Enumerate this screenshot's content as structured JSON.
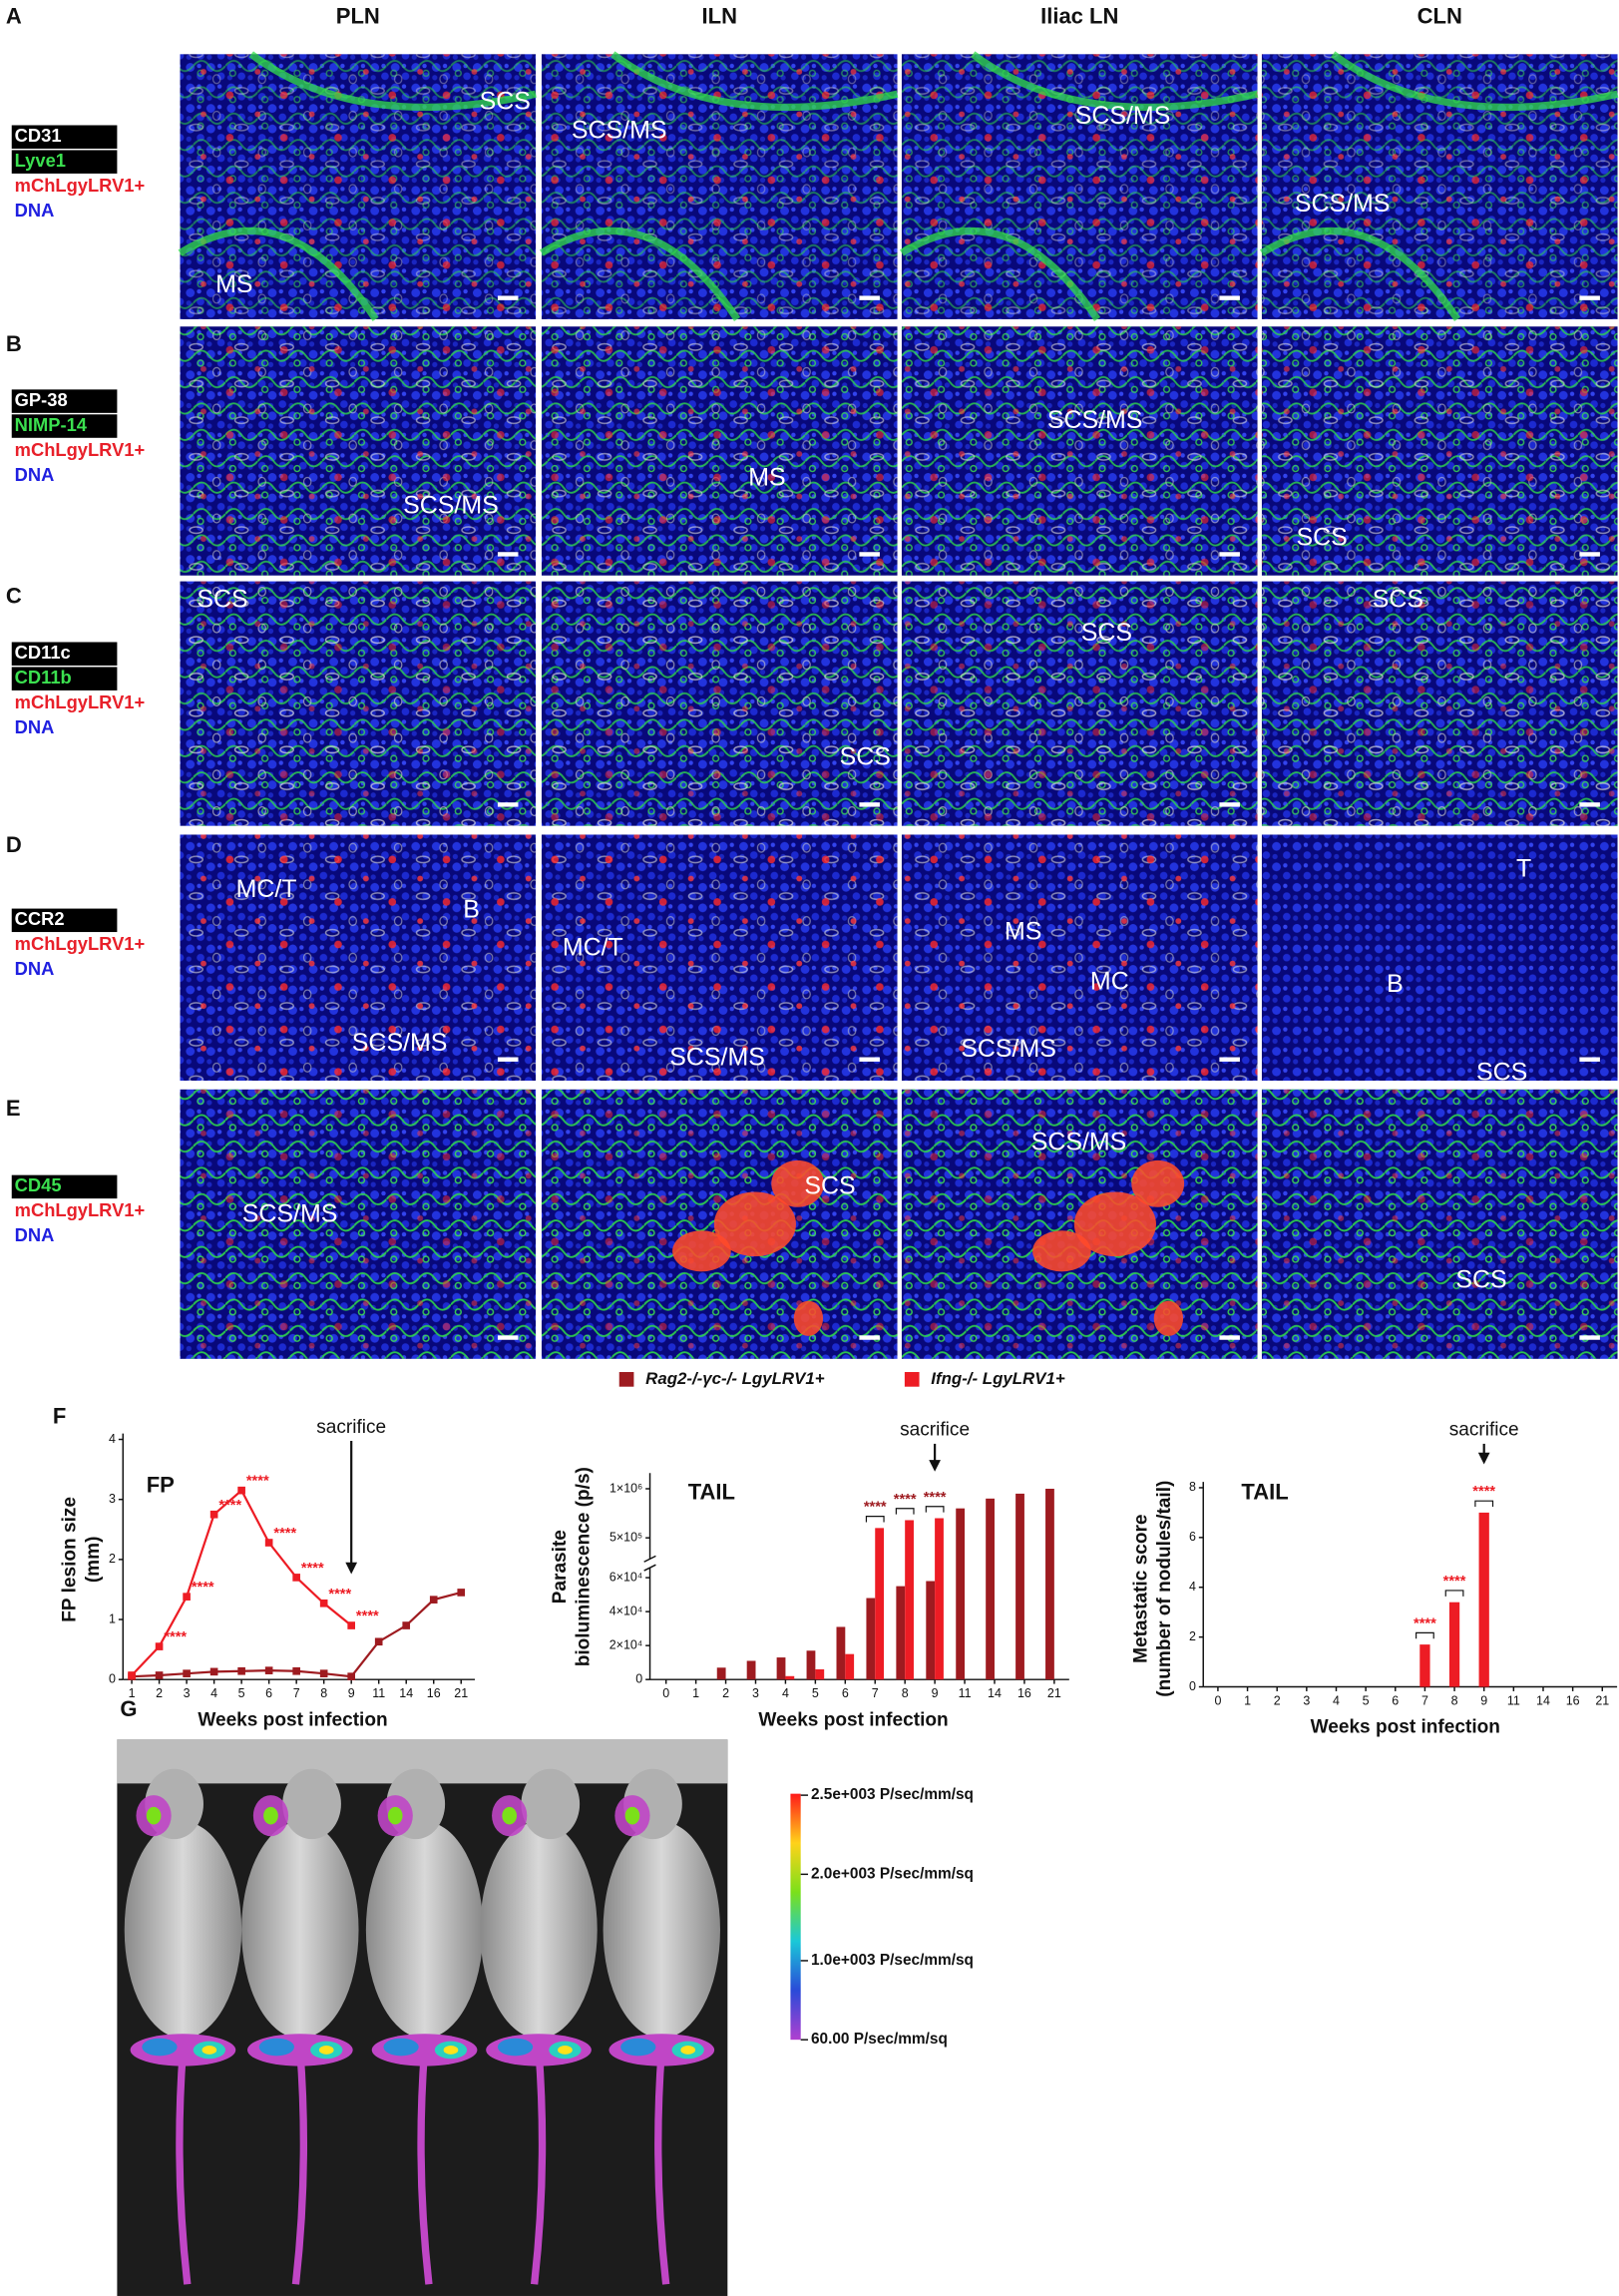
{
  "figure": {
    "column_headers": [
      "PLN",
      "ILN",
      "Iliac LN",
      "CLN"
    ],
    "rows": [
      {
        "letter": "A",
        "markers": [
          {
            "text": "CD31",
            "color": "#ffffff",
            "boxed": true
          },
          {
            "text": "Lyve1",
            "color": "#3be04f",
            "boxed": true
          },
          {
            "text": "mChLgyLRV1+",
            "color": "#e8202a"
          },
          {
            "text": "DNA",
            "color": "#1f1fe0"
          }
        ],
        "labels": [
          [
            "SCS",
            "MS"
          ],
          [
            "SCS/MS"
          ],
          [
            "SCS/MS"
          ],
          [
            "SCS/MS"
          ]
        ]
      },
      {
        "letter": "B",
        "markers": [
          {
            "text": "GP-38",
            "color": "#ffffff",
            "boxed": true
          },
          {
            "text": "NIMP-14",
            "color": "#3be04f",
            "boxed": true
          },
          {
            "text": "mChLgyLRV1+",
            "color": "#e8202a"
          },
          {
            "text": "DNA",
            "color": "#1f1fe0"
          }
        ],
        "labels": [
          [
            "SCS/MS"
          ],
          [
            "MS"
          ],
          [
            "SCS/MS"
          ],
          [
            "SCS"
          ]
        ]
      },
      {
        "letter": "C",
        "markers": [
          {
            "text": "CD11c",
            "color": "#ffffff",
            "boxed": true
          },
          {
            "text": "CD11b",
            "color": "#3be04f",
            "boxed": true
          },
          {
            "text": "mChLgyLRV1+",
            "color": "#e8202a"
          },
          {
            "text": "DNA",
            "color": "#1f1fe0"
          }
        ],
        "labels": [
          [
            "SCS"
          ],
          [
            "SCS"
          ],
          [
            "SCS"
          ],
          [
            "SCS"
          ]
        ]
      },
      {
        "letter": "D",
        "markers": [
          {
            "text": "CCR2",
            "color": "#ffffff",
            "boxed": true
          },
          {
            "text": "mChLgyLRV1+",
            "color": "#e8202a"
          },
          {
            "text": "DNA",
            "color": "#1f1fe0"
          }
        ],
        "labels": [
          [
            "MC/T",
            "B",
            "SCS/MS"
          ],
          [
            "MC/T",
            "SCS/MS"
          ],
          [
            "MS",
            "MC",
            "SCS/MS"
          ],
          [
            "T",
            "B",
            "SCS"
          ]
        ]
      },
      {
        "letter": "E",
        "markers": [
          {
            "text": "CD45",
            "color": "#3be04f",
            "boxed": true
          },
          {
            "text": "mChLgyLRV1+",
            "color": "#e8202a"
          },
          {
            "text": "DNA",
            "color": "#1f1fe0"
          }
        ],
        "labels": [
          [
            "SCS/MS"
          ],
          [
            "SCS"
          ],
          [
            "SCS/MS"
          ],
          [
            "SCS"
          ]
        ]
      }
    ]
  },
  "panel_f": {
    "letter": "F"
  },
  "chart_data": [
    {
      "type": "line",
      "title": "FP",
      "y_label": [
        "FP lesion size",
        "(mm)"
      ],
      "x_label": "Weeks post infection",
      "categories": [
        "1",
        "2",
        "3",
        "4",
        "5",
        "6",
        "7",
        "8",
        "9",
        "11",
        "14",
        "16",
        "21"
      ],
      "series": [
        {
          "color": "#9e1b20",
          "values": [
            0.05,
            0.07,
            0.1,
            0.13,
            0.14,
            0.15,
            0.14,
            0.1,
            0.05,
            0.63,
            0.9,
            1.33,
            1.45
          ]
        },
        {
          "color": "#ed1c24",
          "values": [
            0.07,
            0.55,
            1.38,
            2.75,
            3.15,
            2.28,
            1.7,
            1.27,
            0.9,
            null,
            null,
            null,
            null
          ]
        }
      ],
      "ylim": [
        0,
        4
      ],
      "yticks": [
        0,
        1,
        2,
        3,
        4
      ],
      "annotations": [
        {
          "text": "sacrifice",
          "at": "9"
        }
      ],
      "significance": [
        {
          "text": "****",
          "at": "2"
        },
        {
          "text": "****",
          "at": "3"
        },
        {
          "text": "****",
          "at": "4"
        },
        {
          "text": "****",
          "at": "5"
        },
        {
          "text": "****",
          "at": "6"
        },
        {
          "text": "****",
          "at": "7"
        },
        {
          "text": "****",
          "at": "8"
        },
        {
          "text": "****",
          "at": "9"
        }
      ],
      "significance_color": "#ed1c24"
    },
    {
      "type": "bar",
      "title": "TAIL",
      "y_label": [
        "Parasite",
        "bioluminescence (p/s)"
      ],
      "x_label": "Weeks post infection",
      "categories": [
        "0",
        "1",
        "2",
        "3",
        "4",
        "5",
        "6",
        "7",
        "8",
        "9",
        "11",
        "14",
        "16",
        "21"
      ],
      "series": [
        {
          "name": "Rag2-/-γc-/- LgyLRV1+",
          "color": "#9e1b20",
          "values": [
            0,
            0,
            7000,
            11000,
            13000,
            17000,
            31000,
            48000,
            55000,
            58000,
            800000,
            900000,
            950000,
            1000000
          ]
        },
        {
          "name": "Ifng-/- LgyLRV1+",
          "color": "#ed1c24",
          "values": [
            0,
            0,
            0,
            0,
            2000,
            6000,
            15000,
            600000,
            680000,
            700000,
            null,
            null,
            null,
            null
          ]
        }
      ],
      "ylim": [
        0,
        1100000
      ],
      "axis_break": [
        65000,
        300000
      ],
      "yticks": [
        0,
        {
          "value": 20000,
          "label": "2×10⁴"
        },
        {
          "value": 40000,
          "label": "4×10⁴"
        },
        {
          "value": 60000,
          "label": "6×10⁴"
        },
        {
          "value": 500000,
          "label": "5×10⁵"
        },
        {
          "value": 1000000,
          "label": "1×10⁶"
        }
      ],
      "annotations": [
        {
          "text": "sacrifice",
          "at": "9"
        }
      ],
      "significance": [
        {
          "text": "****",
          "at": "7"
        },
        {
          "text": "****",
          "at": "8"
        },
        {
          "text": "****",
          "at": "9"
        }
      ],
      "significance_color": "#9e1b20"
    },
    {
      "type": "bar",
      "title": "TAIL",
      "y_label": [
        "Metastatic score",
        "(number of nodules/tail)"
      ],
      "x_label": "Weeks post infection",
      "categories": [
        "0",
        "1",
        "2",
        "3",
        "4",
        "5",
        "6",
        "7",
        "8",
        "9",
        "11",
        "14",
        "16",
        "21"
      ],
      "series": [
        {
          "color": "#ed1c24",
          "values": [
            null,
            null,
            null,
            null,
            null,
            null,
            null,
            1.7,
            3.4,
            7.0,
            null,
            null,
            null,
            null
          ]
        }
      ],
      "ylim": [
        0,
        8
      ],
      "yticks": [
        0,
        2,
        4,
        6,
        8
      ],
      "annotations": [
        {
          "text": "sacrifice",
          "at": "9"
        }
      ],
      "significance": [
        {
          "text": "****",
          "at": "7"
        },
        {
          "text": "****",
          "at": "8"
        },
        {
          "text": "****",
          "at": "9"
        }
      ],
      "significance_color": "#ed1c24"
    }
  ],
  "panel_g": {
    "letter": "G",
    "colorbar": {
      "colors": [
        "#ff1a1a",
        "#ffd21a",
        "#7be01a",
        "#1ac8d8",
        "#2a4ad8",
        "#b040d0"
      ],
      "labels": [
        "2.5e+003 P/sec/mm/sq",
        "2.0e+003 P/sec/mm/sq",
        "1.0e+003 P/sec/mm/sq",
        "60.00 P/sec/mm/sq"
      ]
    }
  }
}
